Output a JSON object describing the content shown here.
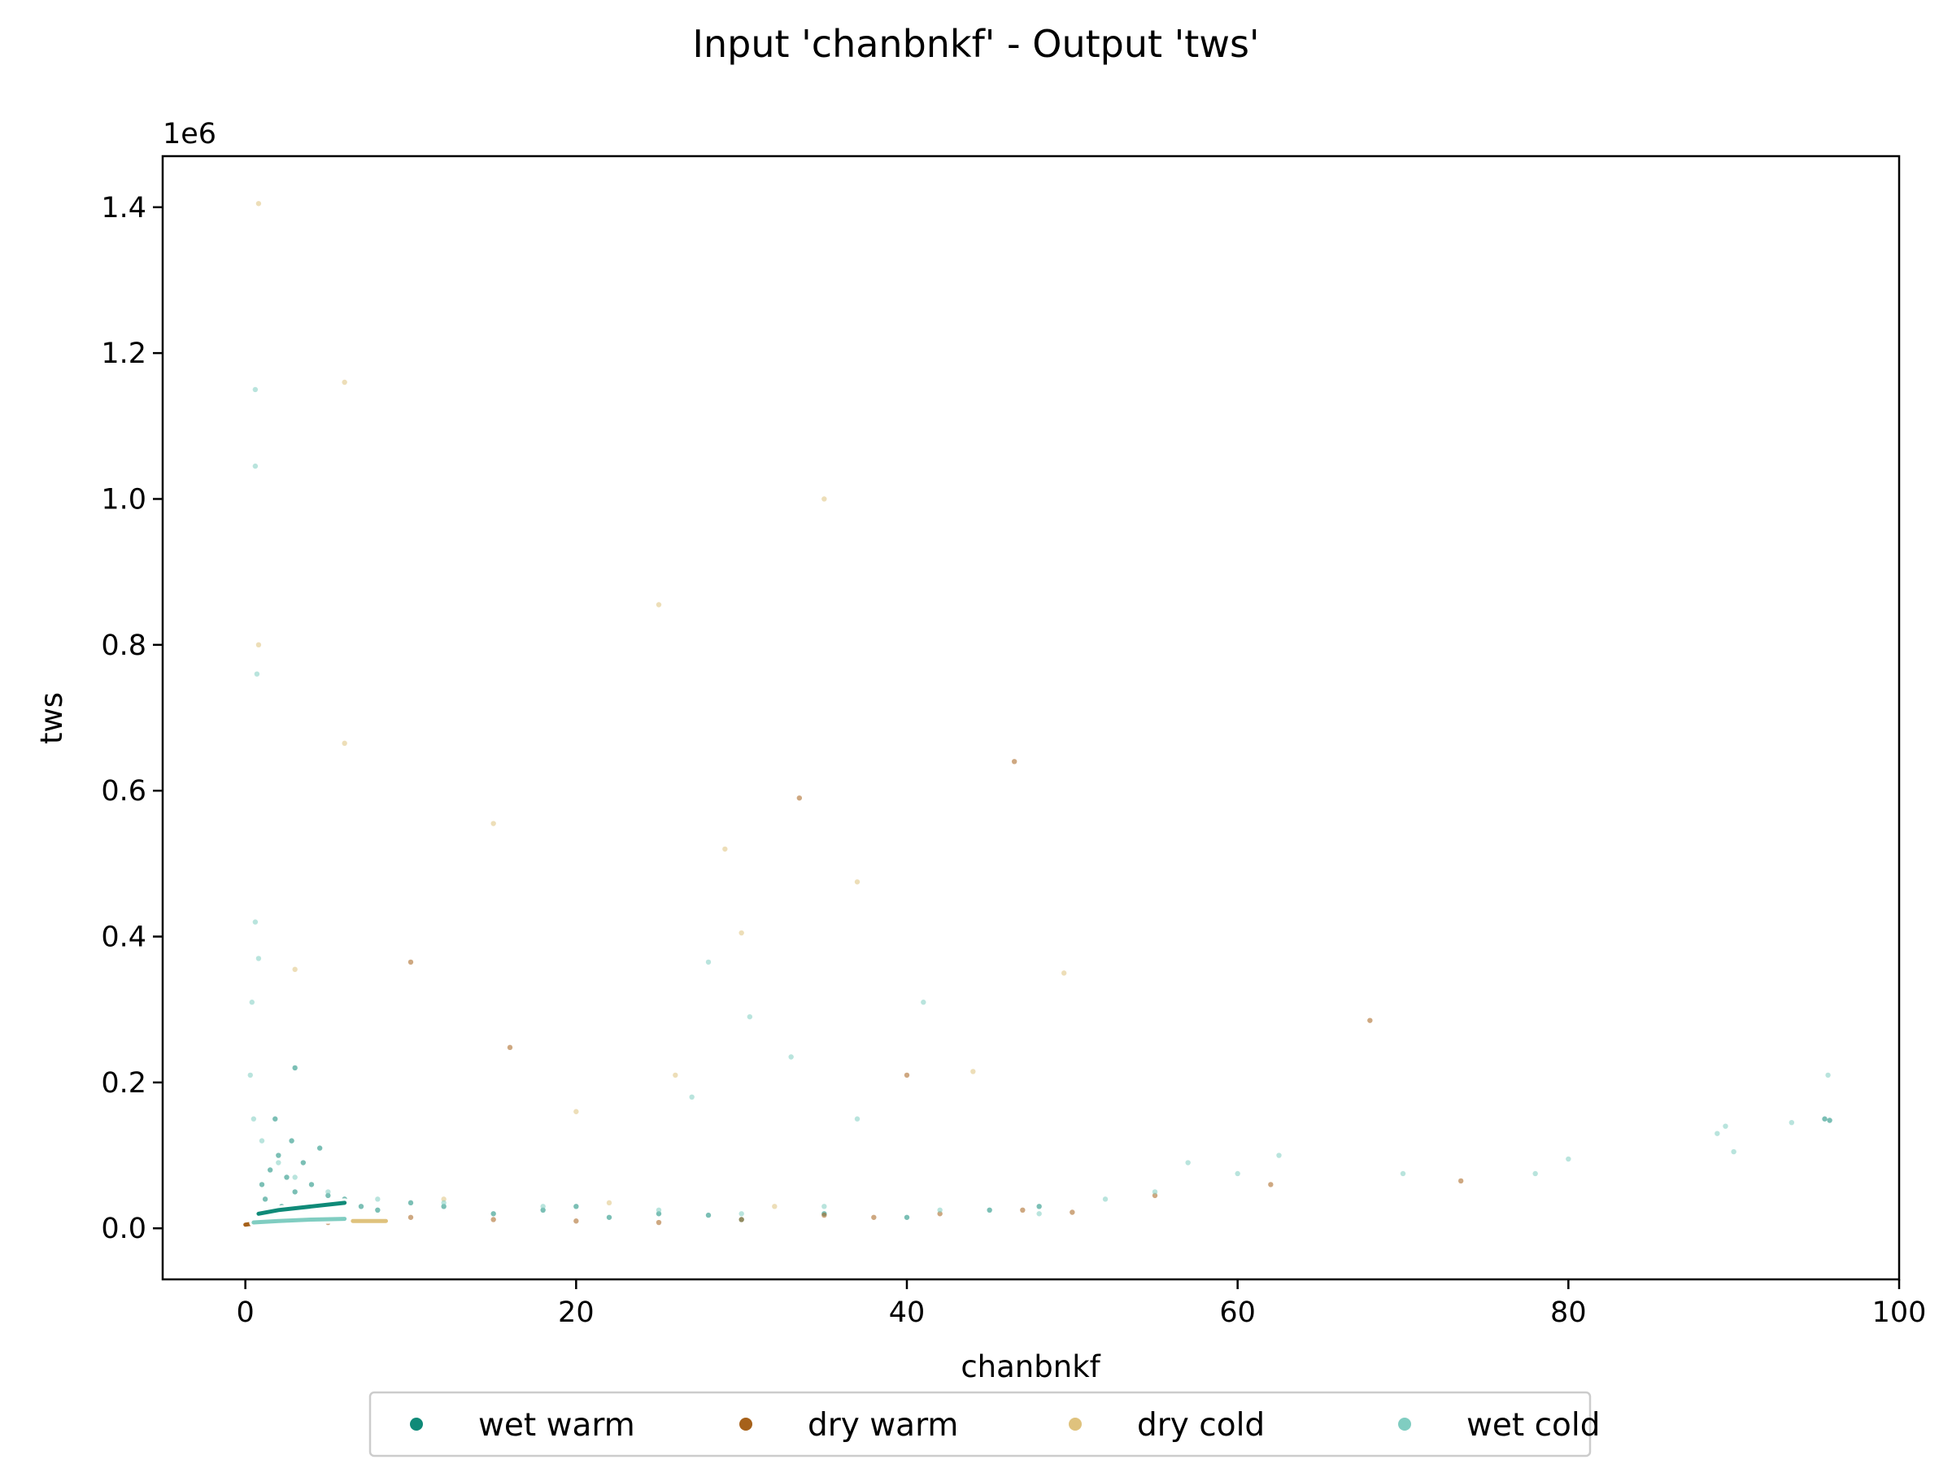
{
  "chart_data": {
    "type": "scatter",
    "title": "Input 'chanbnkf' - Output 'tws'",
    "xlabel": "chanbnkf",
    "ylabel": "tws",
    "y_offset_text": "1e6",
    "xlim": [
      -5,
      100
    ],
    "ylim": [
      -70000,
      1470000
    ],
    "xticks": [
      0,
      20,
      40,
      60,
      80,
      100
    ],
    "yticks": [
      0,
      200000,
      400000,
      600000,
      800000,
      1000000,
      1200000,
      1400000
    ],
    "xtick_labels": [
      "0",
      "20",
      "40",
      "60",
      "80",
      "100"
    ],
    "ytick_labels": [
      "0.0",
      "0.2",
      "0.4",
      "0.6",
      "0.8",
      "1.0",
      "1.2",
      "1.4"
    ],
    "grid": false,
    "legend_position": "bottom-center",
    "series": [
      {
        "name": "wet warm",
        "color": "#0f8a78",
        "points": [
          [
            1,
            60000
          ],
          [
            1.5,
            80000
          ],
          [
            2,
            100000
          ],
          [
            2.5,
            70000
          ],
          [
            3,
            50000
          ],
          [
            3.5,
            90000
          ],
          [
            1.2,
            40000
          ],
          [
            2.2,
            30000
          ],
          [
            4,
            60000
          ],
          [
            5,
            45000
          ],
          [
            6,
            40000
          ],
          [
            7,
            30000
          ],
          [
            8,
            25000
          ],
          [
            10,
            35000
          ],
          [
            12,
            30000
          ],
          [
            15,
            20000
          ],
          [
            18,
            25000
          ],
          [
            20,
            30000
          ],
          [
            22,
            15000
          ],
          [
            25,
            20000
          ],
          [
            28,
            18000
          ],
          [
            30,
            12000
          ],
          [
            35,
            20000
          ],
          [
            40,
            15000
          ],
          [
            45,
            25000
          ],
          [
            48,
            30000
          ],
          [
            3,
            220000
          ],
          [
            1.8,
            150000
          ],
          [
            2.8,
            120000
          ],
          [
            4.5,
            110000
          ],
          [
            95.5,
            150000
          ],
          [
            95.8,
            148000
          ]
        ],
        "trend": [
          [
            0.8,
            20000
          ],
          [
            2,
            25000
          ],
          [
            4,
            30000
          ],
          [
            6,
            35000
          ]
        ]
      },
      {
        "name": "dry warm",
        "color": "#a6611a",
        "points": [
          [
            0,
            5000
          ],
          [
            2,
            10000
          ],
          [
            5,
            8000
          ],
          [
            8,
            12000
          ],
          [
            10,
            15000
          ],
          [
            15,
            12000
          ],
          [
            20,
            10000
          ],
          [
            25,
            8000
          ],
          [
            30,
            12000
          ],
          [
            35,
            18000
          ],
          [
            38,
            15000
          ],
          [
            42,
            20000
          ],
          [
            47,
            25000
          ],
          [
            50,
            22000
          ],
          [
            10,
            365000
          ],
          [
            16,
            248000
          ],
          [
            40,
            210000
          ],
          [
            46.5,
            640000
          ],
          [
            33.5,
            590000
          ],
          [
            68,
            285000
          ],
          [
            73.5,
            65000
          ],
          [
            62,
            60000
          ],
          [
            55,
            45000
          ]
        ],
        "trend": [
          [
            0,
            5000
          ],
          [
            0.3,
            6000
          ]
        ]
      },
      {
        "name": "dry cold",
        "color": "#dfc27d",
        "points": [
          [
            6,
            665000
          ],
          [
            3,
            355000
          ],
          [
            15,
            555000
          ],
          [
            37,
            475000
          ],
          [
            49.5,
            350000
          ],
          [
            30,
            405000
          ],
          [
            29,
            520000
          ],
          [
            44,
            215000
          ],
          [
            26,
            210000
          ],
          [
            20,
            160000
          ],
          [
            25,
            855000
          ],
          [
            35,
            1000000
          ],
          [
            6,
            1160000
          ],
          [
            0.8,
            1405000
          ],
          [
            0.8,
            800000
          ],
          [
            12,
            40000
          ],
          [
            22,
            35000
          ],
          [
            32,
            30000
          ]
        ],
        "trend": [
          [
            6.5,
            10000
          ],
          [
            8.5,
            10000
          ]
        ]
      },
      {
        "name": "wet cold",
        "color": "#80cdc1",
        "points": [
          [
            0.5,
            150000
          ],
          [
            0.8,
            370000
          ],
          [
            0.6,
            420000
          ],
          [
            0.4,
            310000
          ],
          [
            0.3,
            210000
          ],
          [
            0.6,
            1150000
          ],
          [
            0.6,
            1045000
          ],
          [
            0.7,
            760000
          ],
          [
            1,
            120000
          ],
          [
            2,
            90000
          ],
          [
            3,
            70000
          ],
          [
            5,
            50000
          ],
          [
            8,
            40000
          ],
          [
            12,
            35000
          ],
          [
            18,
            30000
          ],
          [
            25,
            25000
          ],
          [
            30,
            20000
          ],
          [
            35,
            30000
          ],
          [
            42,
            25000
          ],
          [
            48,
            20000
          ],
          [
            52,
            40000
          ],
          [
            55,
            50000
          ],
          [
            57,
            90000
          ],
          [
            60,
            75000
          ],
          [
            62.5,
            100000
          ],
          [
            70,
            75000
          ],
          [
            78,
            75000
          ],
          [
            80,
            95000
          ],
          [
            89,
            130000
          ],
          [
            89.5,
            140000
          ],
          [
            90,
            105000
          ],
          [
            93.5,
            145000
          ],
          [
            95.7,
            210000
          ],
          [
            41,
            310000
          ],
          [
            30.5,
            290000
          ],
          [
            33,
            235000
          ],
          [
            28,
            365000
          ],
          [
            27,
            180000
          ],
          [
            37,
            150000
          ]
        ],
        "trend": [
          [
            0.5,
            8000
          ],
          [
            2,
            10000
          ],
          [
            4,
            12000
          ],
          [
            6,
            13000
          ]
        ]
      }
    ]
  },
  "legend": {
    "items": [
      {
        "label": "wet warm",
        "color": "#0f8a78"
      },
      {
        "label": "dry warm",
        "color": "#a6611a"
      },
      {
        "label": "dry cold",
        "color": "#dfc27d"
      },
      {
        "label": "wet cold",
        "color": "#80cdc1"
      }
    ]
  }
}
